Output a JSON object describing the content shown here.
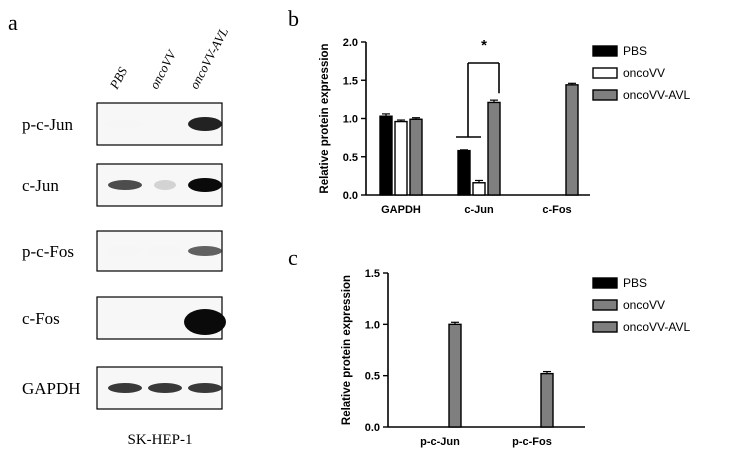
{
  "panel_a": {
    "panel_label": "a",
    "lanes": [
      "PBS",
      "oncoVV",
      "oncoVV-AVL"
    ],
    "cell_line": "SK-HEP-1",
    "blots": [
      {
        "label": "p-c-Jun",
        "intensity": [
          0.05,
          0.0,
          0.95
        ]
      },
      {
        "label": "c-Jun",
        "intensity": [
          0.85,
          0.4,
          1.0
        ]
      },
      {
        "label": "p-c-Fos",
        "intensity": [
          0.05,
          0.05,
          0.8
        ]
      },
      {
        "label": "c-Fos",
        "intensity": [
          0.0,
          0.0,
          1.0
        ]
      },
      {
        "label": "GAPDH",
        "intensity": [
          0.9,
          0.9,
          0.9
        ]
      }
    ]
  },
  "colors": {
    "pbs": "#000000",
    "oncovv_b": "#ffffff",
    "oncovv_c": "#7f7f7f",
    "oncovv_avl": "#7f7f7f"
  },
  "chart_data": [
    {
      "panel_label": "b",
      "type": "bar",
      "categories": [
        "GAPDH",
        "c-Jun",
        "c-Fos"
      ],
      "series": [
        {
          "name": "PBS",
          "values": [
            1.03,
            0.58,
            null
          ],
          "errors": [
            0.03,
            0.01,
            null
          ]
        },
        {
          "name": "oncoVV",
          "values": [
            0.96,
            0.16,
            null
          ],
          "errors": [
            0.02,
            0.03,
            null
          ]
        },
        {
          "name": "oncoVV-AVL",
          "values": [
            0.99,
            1.21,
            1.44
          ],
          "errors": [
            0.02,
            0.03,
            0.02
          ]
        }
      ],
      "ylabel": "Relative protein expression",
      "ylim": [
        0,
        2.0
      ],
      "yticks": [
        "0.0",
        "0.5",
        "1.0",
        "1.5",
        "2.0"
      ],
      "significance": "*",
      "legend": "right"
    },
    {
      "panel_label": "c",
      "type": "bar",
      "categories": [
        "p-c-Jun",
        "p-c-Fos"
      ],
      "series": [
        {
          "name": "PBS",
          "values": [
            null,
            null
          ]
        },
        {
          "name": "oncoVV",
          "values": [
            null,
            null
          ]
        },
        {
          "name": "oncoVV-AVL",
          "values": [
            1.0,
            0.52
          ],
          "errors": [
            0.02,
            0.02
          ]
        }
      ],
      "ylabel": "Relative protein expression",
      "ylim": [
        0,
        1.5
      ],
      "yticks": [
        "0.0",
        "0.5",
        "1.0",
        "1.5"
      ],
      "legend": "right"
    }
  ]
}
